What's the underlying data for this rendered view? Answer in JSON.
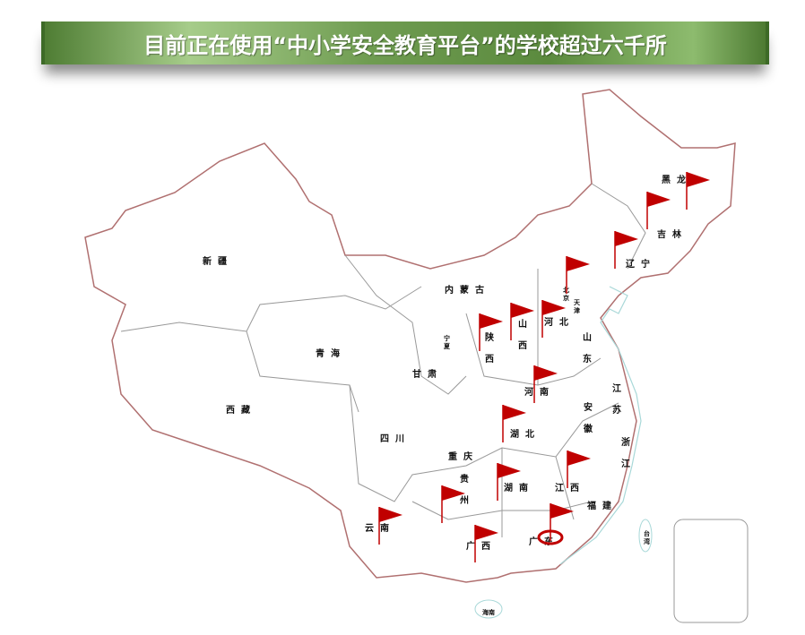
{
  "title": "目前正在使用“中小学安全教育平台”的学校超过六千所",
  "colors": {
    "banner": "#6f9c51",
    "border": "#b07070",
    "flag": "#c00000",
    "coast": "#a8d8d8"
  },
  "provinces": [
    {
      "name": "黑龙",
      "x": 0,
      "y": 0
    },
    {
      "name": "吉林"
    },
    {
      "name": "辽宁"
    },
    {
      "name": "内蒙古"
    },
    {
      "name": "新疆"
    },
    {
      "name": "青海"
    },
    {
      "name": "西藏"
    },
    {
      "name": "甘肃"
    },
    {
      "name": "宁夏"
    },
    {
      "name": "陕西"
    },
    {
      "name": "山西"
    },
    {
      "name": "河北"
    },
    {
      "name": "北京"
    },
    {
      "name": "天津"
    },
    {
      "name": "山东"
    },
    {
      "name": "河南"
    },
    {
      "name": "江苏"
    },
    {
      "name": "安徽"
    },
    {
      "name": "湖北"
    },
    {
      "name": "四川"
    },
    {
      "name": "重庆"
    },
    {
      "name": "浙江"
    },
    {
      "name": "贵州"
    },
    {
      "name": "湖南"
    },
    {
      "name": "江西"
    },
    {
      "name": "福建"
    },
    {
      "name": "云南"
    },
    {
      "name": "广西"
    },
    {
      "name": "广东"
    },
    {
      "name": "台湾"
    },
    {
      "name": "海南"
    }
  ],
  "flags": [
    "黑龙江",
    "吉林",
    "辽宁",
    "北京",
    "陕西",
    "山西",
    "河北",
    "河南",
    "湖北",
    "湖南",
    "江西",
    "贵州",
    "云南",
    "广西",
    "广东"
  ],
  "highlight": "广东"
}
